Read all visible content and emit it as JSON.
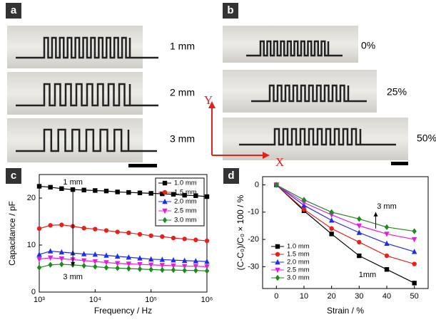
{
  "panels": {
    "labels": [
      "a",
      "b",
      "c",
      "d"
    ],
    "a_labels": [
      "1 mm",
      "2 mm",
      "3 mm"
    ],
    "b_labels": [
      "0%",
      "25%",
      "50%"
    ],
    "axes": [
      "Y",
      "X"
    ]
  },
  "chart_data": [
    {
      "type": "line",
      "x_label": "Frequency / Hz",
      "y_label": "Capacitance / pF",
      "x": [
        1000,
        1585,
        2512,
        3981,
        6310,
        10000,
        15849,
        25119,
        39811,
        63096,
        100000,
        158489,
        251189,
        398107,
        630957,
        1000000
      ],
      "xlim": [
        1000,
        1000000
      ],
      "xscale": "log",
      "xticks": [
        {
          "value": 1000,
          "label": "10³"
        },
        {
          "value": 10000,
          "label": "10⁴"
        },
        {
          "value": 100000,
          "label": "10⁵"
        },
        {
          "value": 1000000,
          "label": "10⁶"
        }
      ],
      "ylim": [
        0,
        25
      ],
      "yticks": [
        0,
        10,
        20
      ],
      "legend": "upper right",
      "annotations": [
        "1 mm",
        "3 mm"
      ],
      "series": [
        {
          "name": "1.0 mm",
          "color": "#000000",
          "marker": "square",
          "values": [
            22.5,
            22.3,
            22,
            21.8,
            21.7,
            21.6,
            21.5,
            21.3,
            21.2,
            21.1,
            21,
            20.9,
            20.8,
            20.6,
            20.5,
            20.3
          ]
        },
        {
          "name": "1.5 mm",
          "color": "#e8201c",
          "marker": "circle",
          "values": [
            13.5,
            14.2,
            14.3,
            14,
            13.6,
            13.4,
            13.1,
            12.8,
            12.6,
            12.3,
            12,
            11.8,
            11.5,
            11.3,
            11.1,
            10.9
          ]
        },
        {
          "name": "2.0 mm",
          "color": "#1c2fe8",
          "marker": "triangle-up",
          "values": [
            8,
            8.7,
            8.5,
            8.3,
            8.1,
            8,
            7.8,
            7.6,
            7.4,
            7.2,
            7,
            6.9,
            6.8,
            6.7,
            6.6,
            6.5
          ]
        },
        {
          "name": "2.5 mm",
          "color": "#e81ce0",
          "marker": "triangle-down",
          "values": [
            7,
            7.3,
            7.1,
            6.9,
            6.7,
            6.5,
            6.3,
            6.1,
            6,
            5.9,
            5.8,
            5.7,
            5.6,
            5.5,
            5.5,
            5.4
          ]
        },
        {
          "name": "3.0 mm",
          "color": "#1c8a1c",
          "marker": "diamond",
          "values": [
            5.2,
            5.8,
            5.9,
            5.8,
            5.6,
            5.4,
            5.2,
            5.1,
            5,
            4.9,
            4.8,
            4.7,
            4.7,
            4.6,
            4.6,
            4.5
          ]
        }
      ]
    },
    {
      "type": "line",
      "x_label": "Strain / %",
      "y_label": "(C-C₀)/C₀ × 100 / %",
      "x": [
        0,
        10,
        20,
        30,
        40,
        50
      ],
      "xlim": [
        -5,
        55
      ],
      "xscale": "linear",
      "xticks": [
        0,
        10,
        20,
        30,
        40,
        50
      ],
      "ylim": [
        -38,
        3
      ],
      "yticks": [
        -30,
        -20,
        -10,
        0
      ],
      "legend": "lower left",
      "annotations": [
        "3 mm",
        "1mm"
      ],
      "series": [
        {
          "name": "1.0 mm",
          "color": "#000000",
          "marker": "square",
          "values": [
            0,
            -9.5,
            -18,
            -26,
            -31,
            -36
          ]
        },
        {
          "name": "1.5 mm",
          "color": "#e8201c",
          "marker": "circle",
          "values": [
            0,
            -9,
            -16,
            -21,
            -26,
            -29
          ]
        },
        {
          "name": "2.0 mm",
          "color": "#1c2fe8",
          "marker": "triangle-up",
          "values": [
            0,
            -7.5,
            -13,
            -17.5,
            -21.5,
            -24.5
          ]
        },
        {
          "name": "2.5 mm",
          "color": "#e81ce0",
          "marker": "triangle-down",
          "values": [
            0,
            -6.5,
            -11,
            -15,
            -18,
            -20
          ]
        },
        {
          "name": "3.0 mm",
          "color": "#1c8a1c",
          "marker": "diamond",
          "values": [
            0,
            -5.5,
            -10,
            -12.5,
            -15.5,
            -17
          ]
        }
      ]
    }
  ]
}
